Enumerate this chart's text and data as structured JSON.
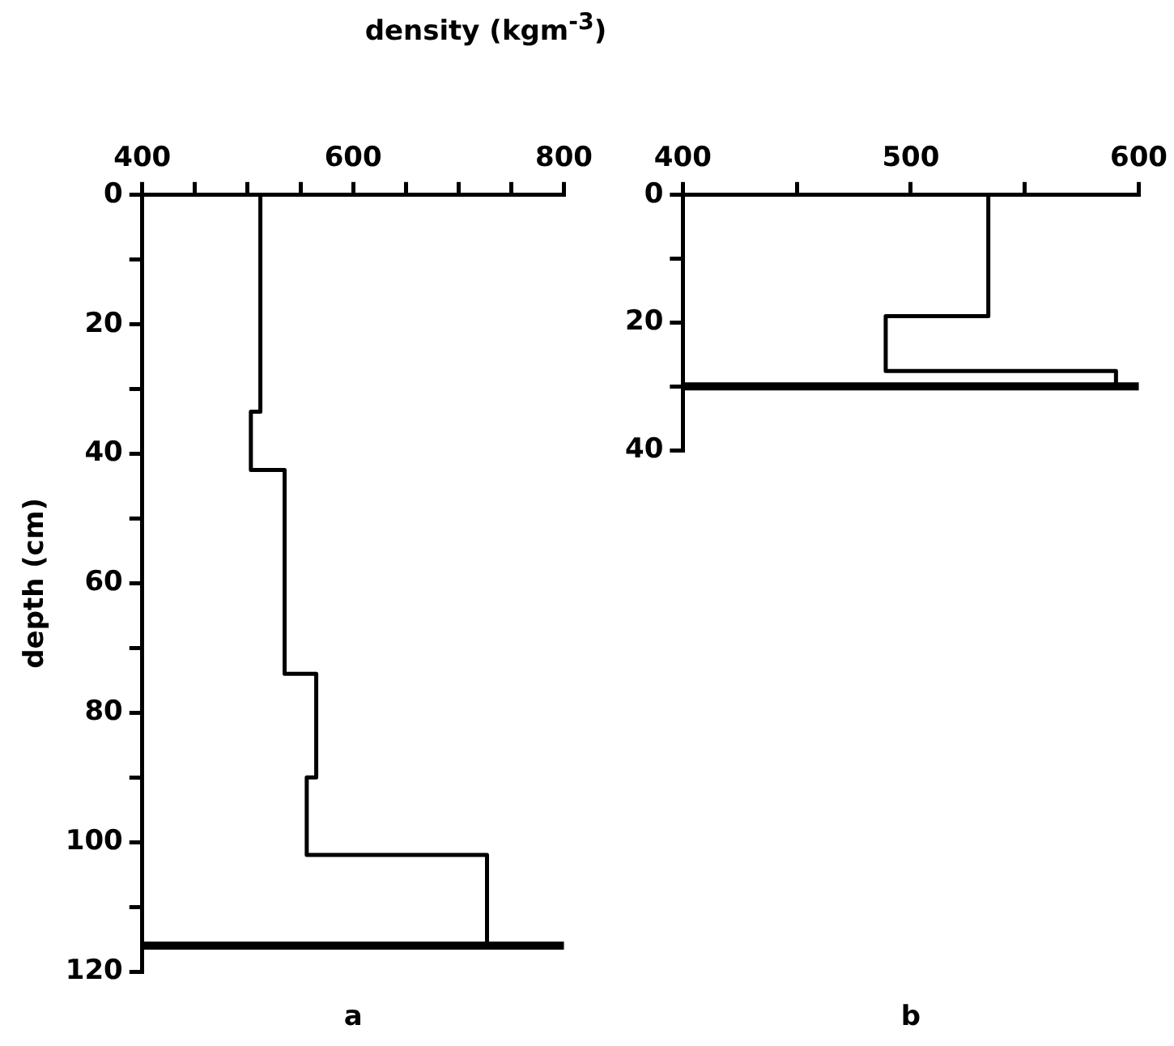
{
  "chart_data": [
    {
      "type": "line",
      "xlabel": "density (kgm$^{-3}$)",
      "ylabel": "depth (cm)",
      "annotations": [
        "a"
      ],
      "color": "#000000",
      "marker": "none",
      "x": [
        512,
        512,
        503,
        503,
        535,
        535,
        565,
        565,
        556,
        556,
        727,
        727
      ],
      "values": [
        0,
        33.5,
        33.5,
        42.5,
        42.5,
        74,
        74,
        90,
        90,
        102,
        102,
        116
      ],
      "xlim": [
        400,
        800
      ],
      "ylim": [
        120,
        0
      ],
      "xticks": [
        400,
        {
          "value": 450,
          "label": null
        },
        {
          "value": 500,
          "label": null
        },
        {
          "value": 550,
          "label": null
        },
        600,
        {
          "value": 650,
          "label": null
        },
        {
          "value": 700,
          "label": null
        },
        {
          "value": 750,
          "label": null
        },
        800
      ],
      "yticks": [
        0,
        {
          "value": 10,
          "label": null
        },
        20,
        {
          "value": 30,
          "label": null
        },
        40,
        {
          "value": 50,
          "label": null
        },
        60,
        {
          "value": 70,
          "label": null
        },
        80,
        {
          "value": 90,
          "label": null
        },
        100,
        {
          "value": 110,
          "label": null
        },
        120
      ],
      "ref_lines": [
        {
          "axis": "y",
          "value": 116,
          "color": "#000000"
        }
      ]
    },
    {
      "type": "line",
      "annotations": [
        "b"
      ],
      "color": "#000000",
      "marker": "none",
      "x": [
        534,
        534,
        489,
        489,
        590,
        590
      ],
      "values": [
        0,
        19,
        19,
        27.6,
        27.6,
        30
      ],
      "xlim": [
        400,
        600
      ],
      "ylim": [
        40,
        0
      ],
      "xticks": [
        400,
        {
          "value": 450,
          "label": null
        },
        500,
        {
          "value": 550,
          "label": null
        },
        600
      ],
      "yticks": [
        0,
        {
          "value": 10,
          "label": null
        },
        20,
        {
          "value": 30,
          "label": null
        },
        40
      ],
      "ref_lines": [
        {
          "axis": "y",
          "value": 30,
          "color": "#000000"
        }
      ]
    }
  ]
}
